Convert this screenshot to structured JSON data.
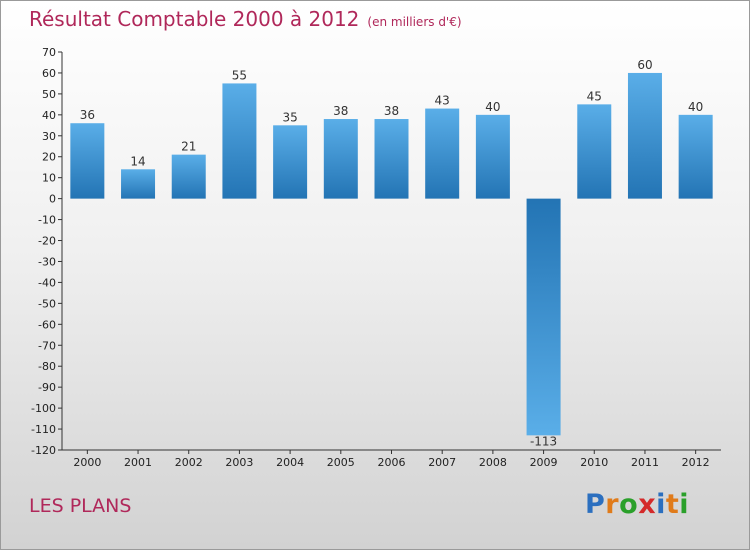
{
  "title": "Résultat Comptable 2000 à 2012",
  "subtitle": "(en milliers d'€)",
  "place": "LES PLANS",
  "logo": {
    "letters": [
      "P",
      "r",
      "o",
      "x",
      "i",
      "t",
      "i"
    ],
    "colors": [
      "#2b6fbf",
      "#e07b1a",
      "#2aa02a",
      "#d42a2a",
      "#2b6fbf",
      "#e07b1a",
      "#2aa02a"
    ]
  },
  "colors": {
    "bar_top": "#5aaee8",
    "bar_bottom": "#2374b4",
    "title": "#b0285a"
  },
  "chart_data": {
    "type": "bar",
    "title": "Résultat Comptable 2000 à 2012",
    "xlabel": "",
    "ylabel": "",
    "categories": [
      "2000",
      "2001",
      "2002",
      "2003",
      "2004",
      "2005",
      "2006",
      "2007",
      "2008",
      "2009",
      "2010",
      "2011",
      "2012"
    ],
    "values": [
      36,
      14,
      21,
      55,
      35,
      38,
      38,
      43,
      40,
      -113,
      45,
      60,
      40
    ],
    "labels": [
      "36",
      "14",
      "21",
      "55",
      "35",
      "38",
      "38",
      "43",
      "40",
      "-113",
      "45",
      "60",
      "40"
    ],
    "ylim": [
      -120,
      70
    ],
    "yticks": [
      70,
      60,
      50,
      40,
      30,
      20,
      10,
      0,
      -10,
      -20,
      -30,
      -40,
      -50,
      -60,
      -70,
      -80,
      -90,
      -100,
      -110,
      -120
    ],
    "grid": false
  }
}
